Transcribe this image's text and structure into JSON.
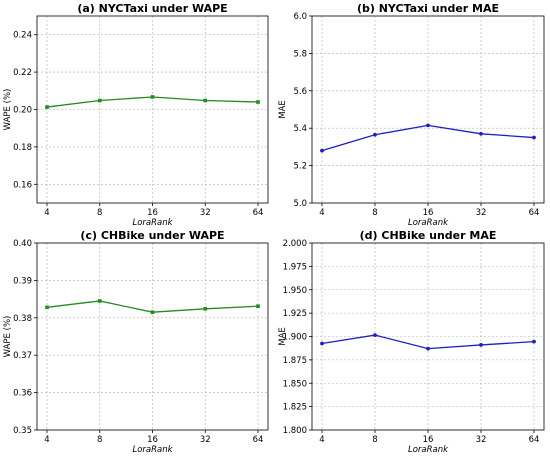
{
  "chart_data": [
    {
      "type": "line",
      "title": "(a) NYCTaxi under WAPE",
      "xlabel": "LoraRank",
      "ylabel": "WAPE (%)",
      "categories": [
        "4",
        "8",
        "16",
        "32",
        "64"
      ],
      "ylim": [
        0.15,
        0.25
      ],
      "yticks": [
        "0.16",
        "0.18",
        "0.20",
        "0.22",
        "0.24"
      ],
      "ytick_values": [
        0.16,
        0.18,
        0.2,
        0.22,
        0.24
      ],
      "grid": true,
      "series": [
        {
          "values": [
            0.2013,
            0.2048,
            0.2067,
            0.2048,
            0.204
          ],
          "color": "#228B22",
          "marker": "square"
        }
      ]
    },
    {
      "type": "line",
      "title": "(b) NYCTaxi under MAE",
      "xlabel": "LoraRank",
      "ylabel": "MAE",
      "categories": [
        "4",
        "8",
        "16",
        "32",
        "64"
      ],
      "ylim": [
        5.0,
        6.0
      ],
      "yticks": [
        "5.0",
        "5.2",
        "5.4",
        "5.6",
        "5.8",
        "6.0"
      ],
      "ytick_values": [
        5.0,
        5.2,
        5.4,
        5.6,
        5.8,
        6.0
      ],
      "grid": true,
      "series": [
        {
          "values": [
            5.28,
            5.365,
            5.415,
            5.37,
            5.35
          ],
          "color": "#1f1fbf",
          "marker": "circle"
        }
      ]
    },
    {
      "type": "line",
      "title": "(c) CHBike under WAPE",
      "xlabel": "LoraRank",
      "ylabel": "WAPE (%)",
      "categories": [
        "4",
        "8",
        "16",
        "32",
        "64"
      ],
      "ylim": [
        0.35,
        0.4
      ],
      "yticks": [
        "0.35",
        "0.36",
        "0.37",
        "0.38",
        "0.39",
        "0.40"
      ],
      "ytick_values": [
        0.35,
        0.36,
        0.37,
        0.38,
        0.39,
        0.4
      ],
      "grid": true,
      "series": [
        {
          "values": [
            0.3828,
            0.3845,
            0.3815,
            0.3824,
            0.3831
          ],
          "color": "#228B22",
          "marker": "square"
        }
      ]
    },
    {
      "type": "line",
      "title": "(d) CHBike under MAE",
      "xlabel": "LoraRank",
      "ylabel": "MAE",
      "categories": [
        "4",
        "8",
        "16",
        "32",
        "64"
      ],
      "ylim": [
        1.8,
        2.0
      ],
      "yticks": [
        "1.800",
        "1.825",
        "1.850",
        "1.875",
        "1.900",
        "1.925",
        "1.950",
        "1.975",
        "2.000"
      ],
      "ytick_values": [
        1.8,
        1.825,
        1.85,
        1.875,
        1.9,
        1.925,
        1.95,
        1.975,
        2.0
      ],
      "grid": true,
      "series": [
        {
          "values": [
            1.8925,
            1.9015,
            1.887,
            1.891,
            1.8945
          ],
          "color": "#1f1fbf",
          "marker": "circle"
        }
      ]
    }
  ]
}
